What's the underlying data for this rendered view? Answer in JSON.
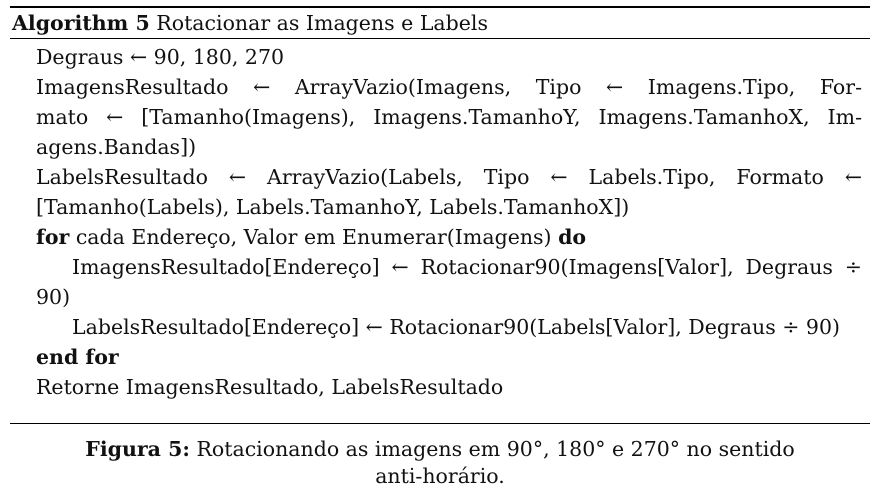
{
  "algorithm": {
    "label": "Algorithm 5",
    "title": "Rotacionar as Imagens e Labels",
    "lines": [
      "Degraus ← 90, 180, 270",
      "ImagensResultado ← ArrayVazio(Imagens, Tipo ← Imagens.Tipo, For-",
      "mato ← [Tamanho(Imagens), Imagens.TamanhoY, Imagens.TamanhoX, Im-",
      "agens.Bandas])",
      "LabelsResultado ← ArrayVazio(Labels, Tipo ← Labels.Tipo, Formato ←",
      "[Tamanho(Labels), Labels.TamanhoY, Labels.TamanhoX])",
      "ImagensResultado[Endereço] ← Rotacionar90(Imagens[Valor], Degraus ÷",
      "90)",
      "LabelsResultado[Endereço] ← Rotacionar90(Labels[Valor], Degraus ÷ 90)",
      "Retorne ImagensResultado, LabelsResultado"
    ],
    "for_keyword": "for",
    "for_body": "cada Endereço, Valor em Enumerar(Imagens)",
    "do_keyword": "do",
    "end_for": "end for"
  },
  "caption": {
    "label": "Figura 5:",
    "text_line1": "Rotacionando as imagens em 90°, 180° e 270° no sentido",
    "text_line2": "anti-horário."
  }
}
